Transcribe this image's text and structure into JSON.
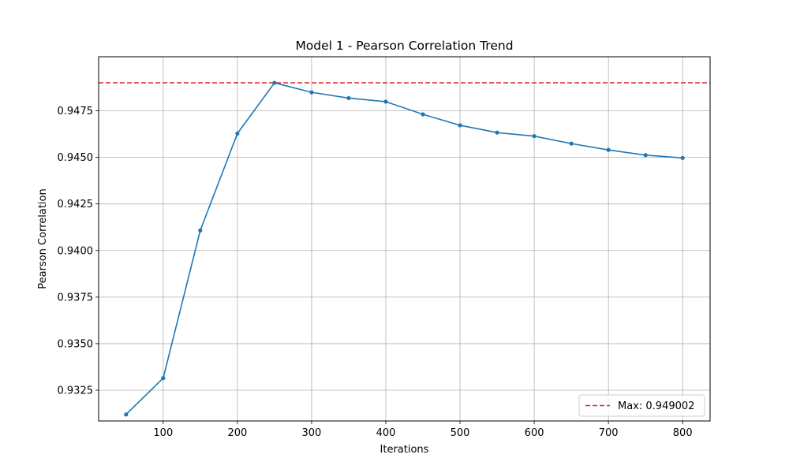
{
  "chart_data": {
    "type": "line",
    "title": "Model 1 - Pearson Correlation Trend",
    "xlabel": "Iterations",
    "ylabel": "Pearson Correlation",
    "xlim": [
      13,
      837
    ],
    "ylim": [
      0.93085,
      0.9504
    ],
    "xticks": [
      100,
      200,
      300,
      400,
      500,
      600,
      700,
      800
    ],
    "yticks": [
      0.9325,
      0.935,
      0.9375,
      0.94,
      0.9425,
      0.945,
      0.9475
    ],
    "xtick_labels": [
      "100",
      "200",
      "300",
      "400",
      "500",
      "600",
      "700",
      "800"
    ],
    "ytick_labels": [
      "0.9325",
      "0.9350",
      "0.9375",
      "0.9400",
      "0.9425",
      "0.9450",
      "0.9475"
    ],
    "grid": true,
    "legend_position": "lower-right",
    "series": [
      {
        "color": "#1f77b4",
        "marker": "circle",
        "x": [
          50,
          100,
          150,
          200,
          250,
          300,
          350,
          400,
          450,
          500,
          550,
          600,
          650,
          700,
          750,
          800
        ],
        "y": [
          0.9312,
          0.93315,
          0.94108,
          0.94628,
          0.949,
          0.94849,
          0.94818,
          0.94799,
          0.94731,
          0.94672,
          0.94633,
          0.94614,
          0.94574,
          0.9454,
          0.94512,
          0.94497
        ]
      }
    ],
    "reference_lines": [
      {
        "orientation": "horizontal",
        "y": 0.949002,
        "color": "#d62728",
        "style": "dashed",
        "label": "Max: 0.949002"
      }
    ]
  }
}
